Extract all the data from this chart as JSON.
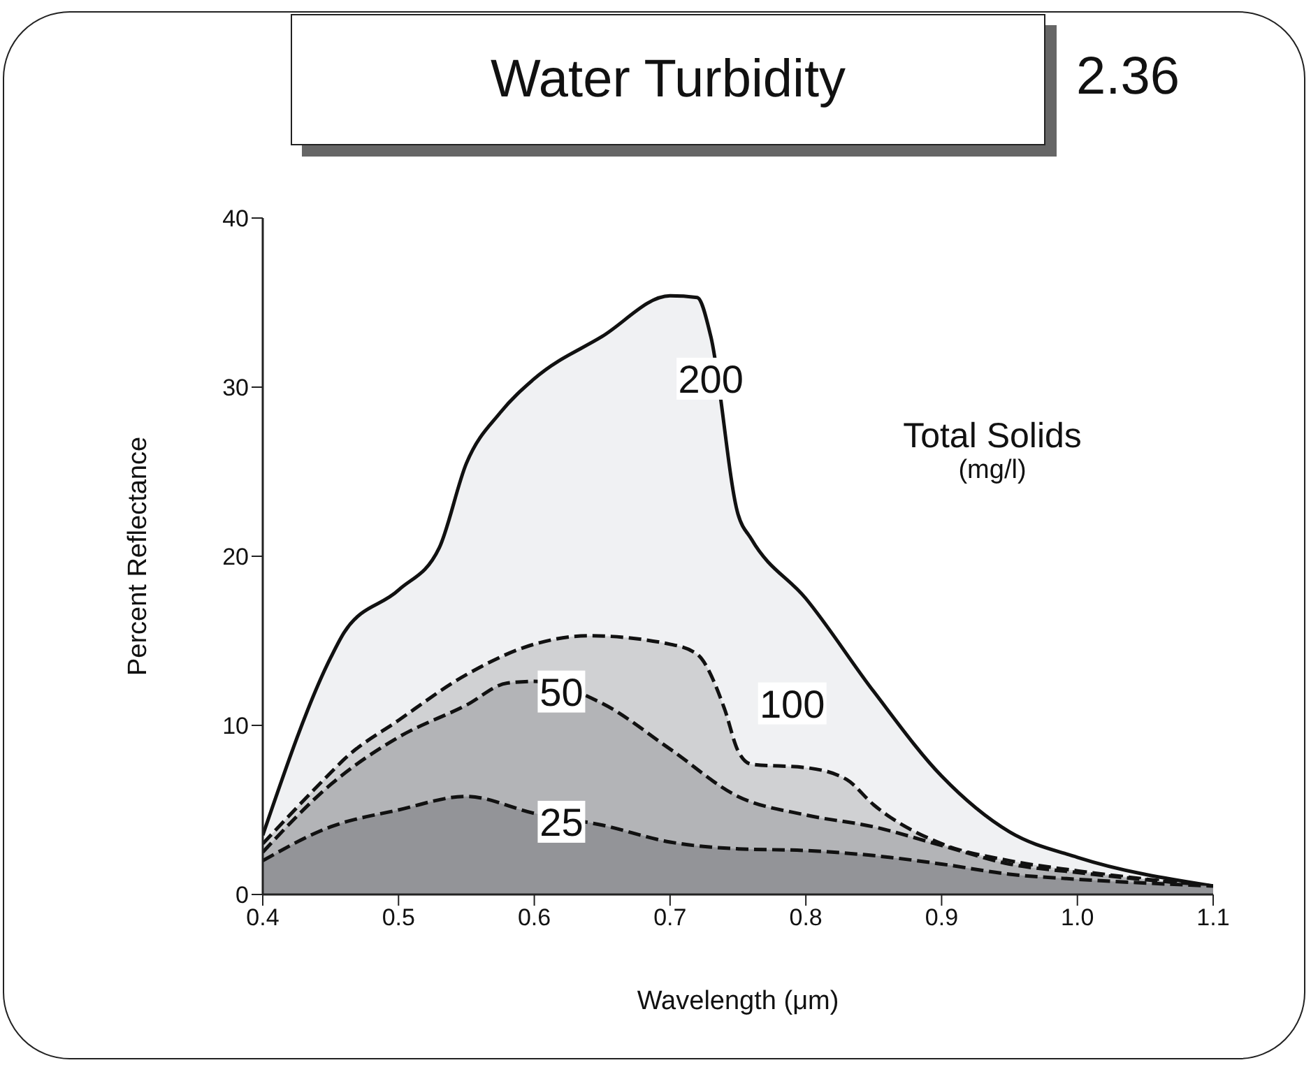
{
  "chart_data": {
    "type": "area",
    "title": "Water Turbidity",
    "xlabel": "Wavelength (μm)",
    "ylabel": "Percent Reflectance",
    "legend_title": "Total Solids (mg/l)",
    "annotations": [
      "2.36"
    ],
    "xlim": [
      0.4,
      1.1
    ],
    "xticks": [
      0.4,
      0.5,
      0.6,
      0.7,
      0.8,
      0.9,
      {
        "value": 1,
        "label": "1.0"
      },
      1.1
    ],
    "ylim": [
      0,
      40
    ],
    "yticks": [
      0,
      10,
      20,
      30,
      40
    ],
    "grid": false,
    "legend": false,
    "series": [
      {
        "name": "200",
        "color": "#f0f1f3",
        "line_style": "solid",
        "x": [
          0.4,
          0.45,
          0.46,
          0.5,
          0.53,
          0.55,
          0.575,
          0.6,
          0.65,
          0.7,
          0.72,
          0.73,
          0.75,
          0.76,
          0.8,
          0.85,
          0.9,
          0.95,
          1.0,
          1.1
        ],
        "values": [
          3.5,
          14,
          15.5,
          18,
          20.5,
          25.5,
          28.5,
          30.5,
          33,
          35.4,
          35.3,
          33,
          22.5,
          21,
          17.5,
          12,
          7,
          3.7,
          2.2,
          0.5
        ]
      },
      {
        "name": "100",
        "color": "#d0d1d3",
        "line_style": "dashed",
        "x": [
          0.4,
          0.45,
          0.46,
          0.5,
          0.55,
          0.6,
          0.64,
          0.7,
          0.72,
          0.74,
          0.75,
          0.76,
          0.8,
          0.83,
          0.85,
          0.9,
          0.95,
          1.0,
          1.1
        ],
        "values": [
          3,
          7.2,
          8,
          10.3,
          13,
          14.8,
          15.3,
          14.8,
          14.2,
          11,
          8.5,
          7.7,
          7.5,
          6.8,
          5.3,
          3,
          2,
          1.4,
          0.5
        ]
      },
      {
        "name": "50",
        "color": "#b3b4b7",
        "line_style": "dashed",
        "x": [
          0.4,
          0.45,
          0.5,
          0.55,
          0.58,
          0.6,
          0.65,
          0.7,
          0.75,
          0.8,
          0.85,
          0.9,
          0.95,
          1.0,
          1.1
        ],
        "values": [
          2.5,
          6.5,
          9.3,
          11.2,
          12.5,
          12.6,
          11.3,
          8.6,
          5.8,
          4.7,
          4,
          2.9,
          1.8,
          1.3,
          0.5
        ]
      },
      {
        "name": "25",
        "color": "#939498",
        "line_style": "dashed",
        "x": [
          0.4,
          0.45,
          0.5,
          0.55,
          0.6,
          0.65,
          0.7,
          0.75,
          0.8,
          0.85,
          0.9,
          0.95,
          1.0,
          1.1
        ],
        "values": [
          2,
          4,
          5,
          5.8,
          4.8,
          4.1,
          3.1,
          2.7,
          2.6,
          2.3,
          1.8,
          1.2,
          0.9,
          0.5
        ]
      }
    ]
  }
}
